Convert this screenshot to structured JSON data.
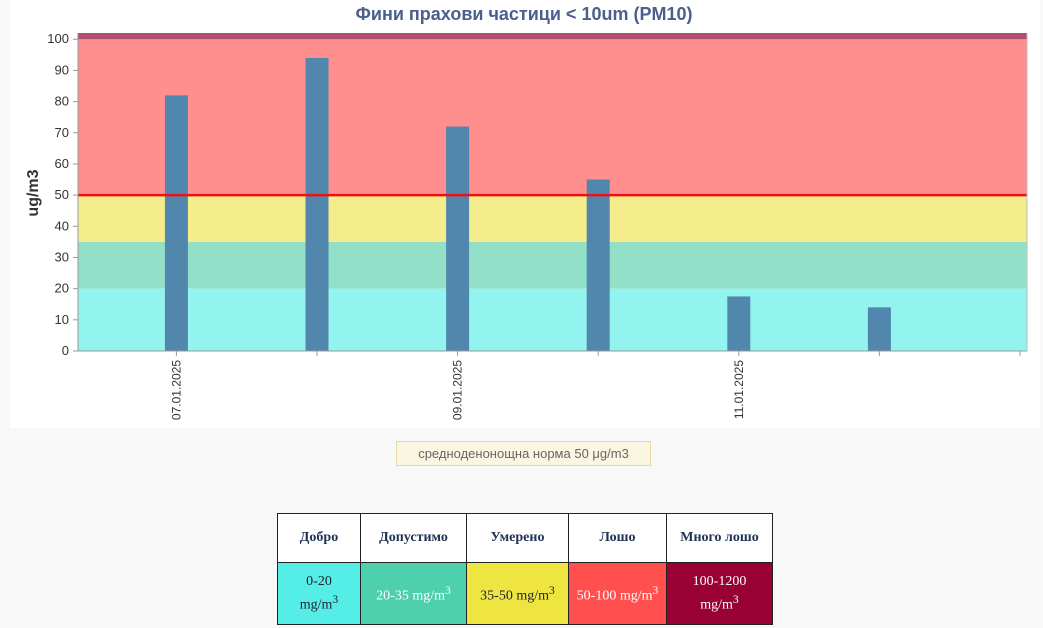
{
  "chart_data": {
    "type": "bar",
    "title": "Фини прахови частици < 10um (PM10)",
    "ylabel": "ug/m3",
    "xlabel": "",
    "ylim": [
      0,
      102
    ],
    "yticks": [
      0,
      10,
      20,
      30,
      40,
      50,
      60,
      70,
      80,
      90,
      100
    ],
    "xtick_labels": [
      "07.01.2025",
      "09.01.2025",
      "11.01.2025"
    ],
    "x_slots": 7,
    "values": [
      82,
      94,
      72,
      55,
      17.5,
      14
    ],
    "threshold": 50,
    "bands": [
      {
        "from": 0,
        "to": 20,
        "color": "#93f3ef"
      },
      {
        "from": 20,
        "to": 35,
        "color": "#93e0c9"
      },
      {
        "from": 35,
        "to": 50,
        "color": "#f5ed8b"
      },
      {
        "from": 50,
        "to": 100,
        "color": "#ff8f8f"
      },
      {
        "from": 100,
        "to": 102,
        "color": "#b04d70"
      }
    ],
    "bar_color": "#5287ad",
    "threshold_color": "#ee1111",
    "grid": false
  },
  "norm_label": "средноденонощна норма 50 μg/m3",
  "aq_table": {
    "headers": [
      "Добро",
      "Допустимо",
      "Умерено",
      "Лошо",
      "Много лошо"
    ],
    "ranges": [
      "0-20",
      "20-35 mg/m",
      "35-50 mg/m",
      "50-100 mg/m",
      "100-1200"
    ],
    "units": [
      "mg/m",
      "",
      "",
      "",
      "mg/m"
    ],
    "sup": "3"
  }
}
